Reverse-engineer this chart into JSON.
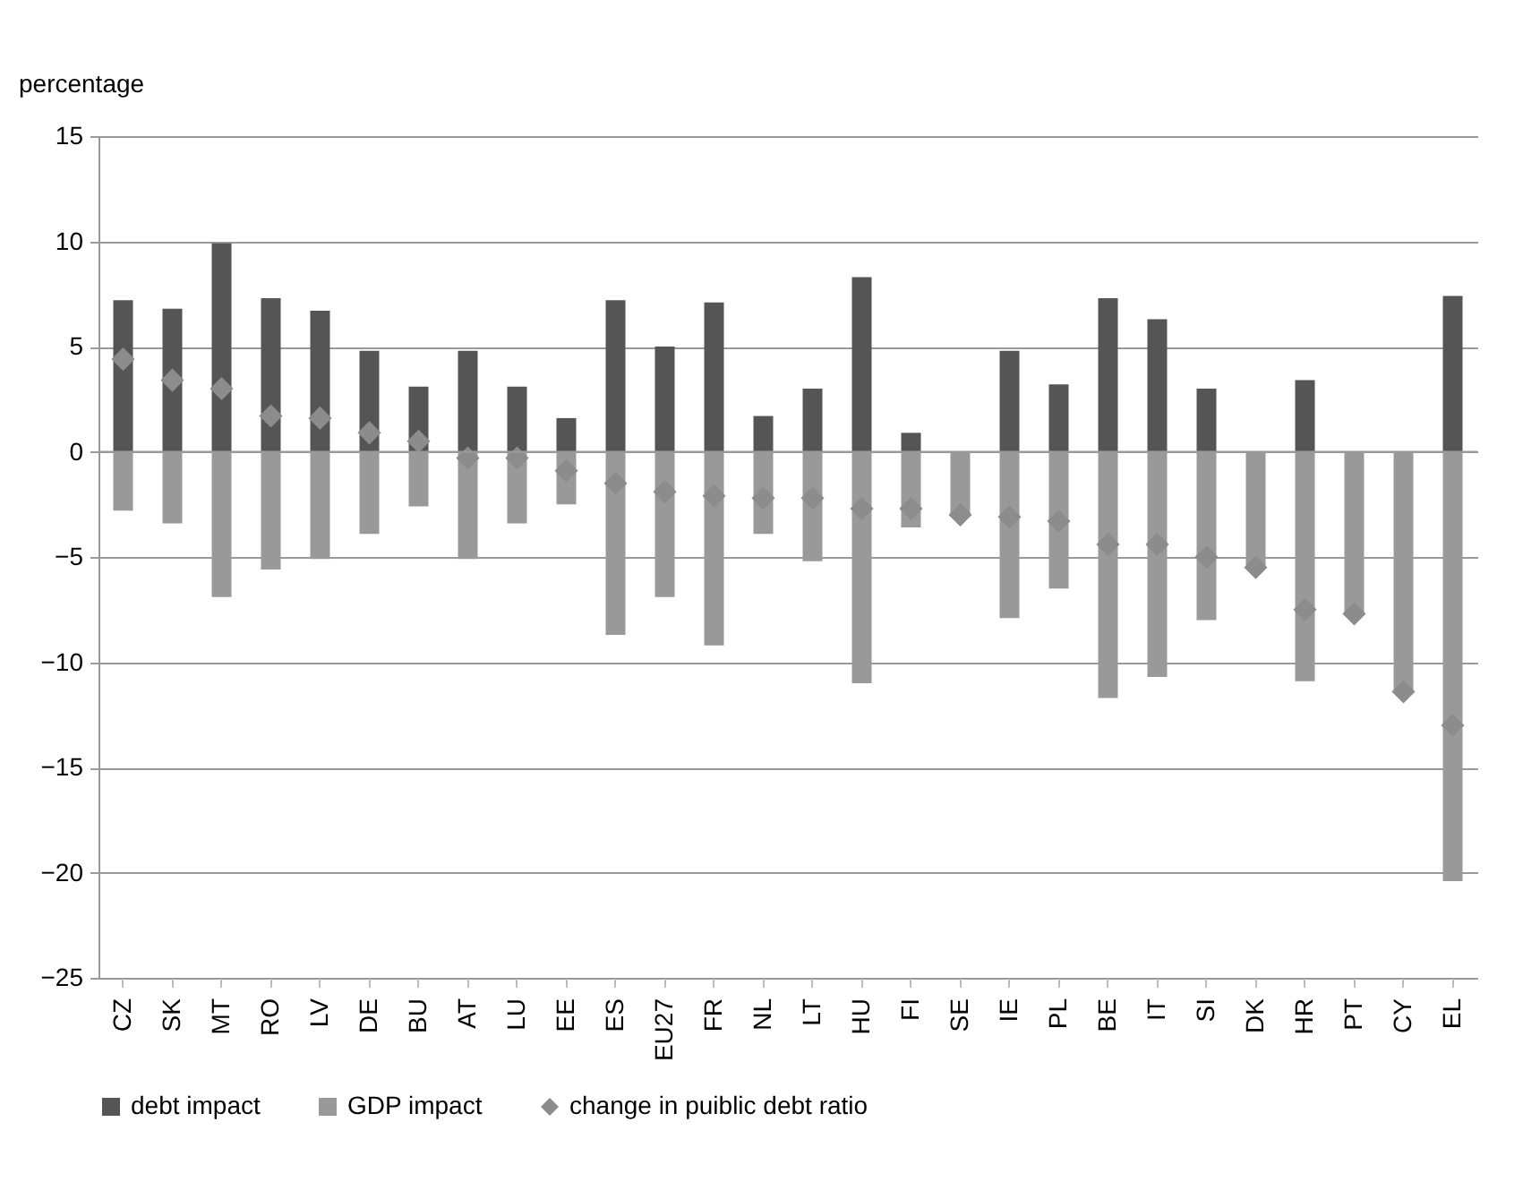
{
  "chart_data": {
    "type": "bar",
    "stacked": true,
    "ylabel": "percentage",
    "categories": [
      "CZ",
      "SK",
      "MT",
      "RO",
      "LV",
      "DE",
      "BU",
      "AT",
      "LU",
      "EE",
      "ES",
      "EU27",
      "FR",
      "NL",
      "LT",
      "HU",
      "FI",
      "SE",
      "IE",
      "PL",
      "BE",
      "IT",
      "SI",
      "DK",
      "HR",
      "PT",
      "CY",
      "EL"
    ],
    "series": [
      {
        "name": "debt impact",
        "type": "bar",
        "color": "#555555",
        "values": [
          7.2,
          6.8,
          9.9,
          7.3,
          6.7,
          4.8,
          3.1,
          4.8,
          3.1,
          1.6,
          7.2,
          5.0,
          7.1,
          1.7,
          3.0,
          8.3,
          0.9,
          0,
          4.8,
          3.2,
          7.3,
          6.3,
          3.0,
          0,
          3.4,
          0,
          0,
          7.4
        ]
      },
      {
        "name": "GDP impact",
        "type": "bar",
        "color": "#999999",
        "values": [
          -2.8,
          -3.4,
          -6.9,
          -5.6,
          -5.1,
          -3.9,
          -2.6,
          -5.1,
          -3.4,
          -2.5,
          -8.7,
          -6.9,
          -9.2,
          -3.9,
          -5.2,
          -11.0,
          -3.6,
          -3.0,
          -7.9,
          -6.5,
          -11.7,
          -10.7,
          -8.0,
          -5.5,
          -10.9,
          -7.7,
          -11.4,
          -20.4
        ]
      },
      {
        "name": "change in puiblic debt ratio",
        "type": "scatter",
        "marker": "diamond",
        "color": "#8c8c8c",
        "values": [
          4.4,
          3.4,
          3.0,
          1.7,
          1.6,
          0.9,
          0.5,
          -0.3,
          -0.3,
          -0.9,
          -1.5,
          -1.9,
          -2.1,
          -2.2,
          -2.2,
          -2.7,
          -2.7,
          -3.0,
          -3.1,
          -3.3,
          -4.4,
          -4.4,
          -5.0,
          -5.5,
          -7.5,
          -7.7,
          -11.4,
          -13.0
        ]
      }
    ],
    "ylim": [
      -25,
      15
    ],
    "yticks": [
      -25,
      -20,
      -15,
      -10,
      -5,
      0,
      5,
      10,
      15
    ],
    "grid": "y",
    "legend": "bottom"
  }
}
